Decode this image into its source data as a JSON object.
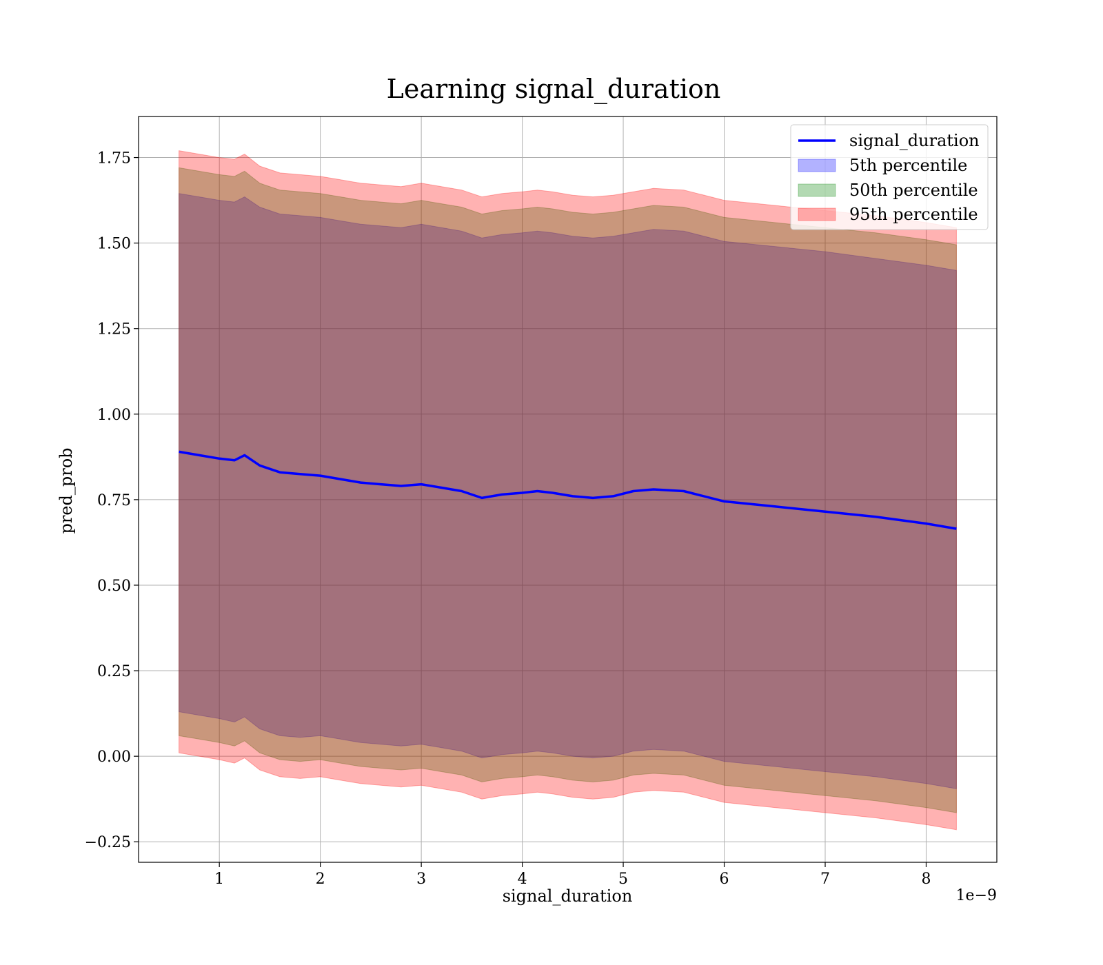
{
  "chart_data": {
    "type": "area",
    "title": "Learning signal_duration",
    "xlabel": "signal_duration",
    "ylabel": "pred_prob",
    "x_offset_label": "1e−9",
    "xlim": [
      0.2,
      8.7
    ],
    "ylim": [
      -0.31,
      1.87
    ],
    "grid": true,
    "legend_position": "upper right",
    "x_ticks": [
      1,
      2,
      3,
      4,
      5,
      6,
      7,
      8
    ],
    "x_tick_labels": [
      "1",
      "2",
      "3",
      "4",
      "5",
      "6",
      "7",
      "8"
    ],
    "y_ticks": [
      -0.25,
      0.0,
      0.25,
      0.5,
      0.75,
      1.0,
      1.25,
      1.5,
      1.75
    ],
    "y_tick_labels": [
      "−0.25",
      "0.00",
      "0.25",
      "0.50",
      "0.75",
      "1.00",
      "1.25",
      "1.50",
      "1.75"
    ],
    "x": [
      0.6,
      0.8,
      1.0,
      1.15,
      1.25,
      1.4,
      1.6,
      1.8,
      2.0,
      2.2,
      2.4,
      2.6,
      2.8,
      3.0,
      3.2,
      3.4,
      3.6,
      3.8,
      4.0,
      4.15,
      4.3,
      4.5,
      4.7,
      4.9,
      5.1,
      5.3,
      5.6,
      6.0,
      6.5,
      7.0,
      7.5,
      8.0,
      8.3
    ],
    "series": [
      {
        "name": "signal_duration",
        "kind": "line",
        "color": "#0000ff",
        "values": [
          0.89,
          0.88,
          0.87,
          0.865,
          0.88,
          0.85,
          0.83,
          0.825,
          0.82,
          0.81,
          0.8,
          0.795,
          0.79,
          0.795,
          0.785,
          0.775,
          0.755,
          0.765,
          0.77,
          0.775,
          0.77,
          0.76,
          0.755,
          0.76,
          0.775,
          0.78,
          0.775,
          0.745,
          0.73,
          0.715,
          0.7,
          0.68,
          0.665
        ]
      },
      {
        "name": "5th percentile",
        "kind": "band",
        "color": "#0000ff",
        "lower": [
          0.13,
          0.12,
          0.11,
          0.1,
          0.115,
          0.08,
          0.06,
          0.055,
          0.06,
          0.05,
          0.04,
          0.035,
          0.03,
          0.035,
          0.025,
          0.015,
          -0.005,
          0.005,
          0.01,
          0.015,
          0.01,
          0.0,
          -0.005,
          0.0,
          0.015,
          0.02,
          0.015,
          -0.015,
          -0.03,
          -0.045,
          -0.06,
          -0.08,
          -0.095
        ],
        "upper": [
          1.645,
          1.635,
          1.625,
          1.62,
          1.635,
          1.605,
          1.585,
          1.58,
          1.575,
          1.565,
          1.555,
          1.55,
          1.545,
          1.555,
          1.545,
          1.535,
          1.515,
          1.525,
          1.53,
          1.535,
          1.53,
          1.52,
          1.515,
          1.52,
          1.53,
          1.54,
          1.535,
          1.505,
          1.49,
          1.475,
          1.455,
          1.435,
          1.42
        ]
      },
      {
        "name": "50th percentile",
        "kind": "band",
        "color": "#008000",
        "lower": [
          0.06,
          0.05,
          0.04,
          0.03,
          0.045,
          0.01,
          -0.01,
          -0.015,
          -0.01,
          -0.02,
          -0.03,
          -0.035,
          -0.04,
          -0.035,
          -0.045,
          -0.055,
          -0.075,
          -0.065,
          -0.06,
          -0.055,
          -0.06,
          -0.07,
          -0.075,
          -0.07,
          -0.055,
          -0.05,
          -0.055,
          -0.085,
          -0.1,
          -0.115,
          -0.13,
          -0.15,
          -0.165
        ],
        "upper": [
          1.72,
          1.71,
          1.7,
          1.695,
          1.71,
          1.675,
          1.655,
          1.65,
          1.645,
          1.635,
          1.625,
          1.62,
          1.615,
          1.625,
          1.615,
          1.605,
          1.585,
          1.595,
          1.6,
          1.605,
          1.6,
          1.59,
          1.585,
          1.59,
          1.6,
          1.61,
          1.605,
          1.575,
          1.56,
          1.545,
          1.53,
          1.51,
          1.495
        ]
      },
      {
        "name": "95th percentile",
        "kind": "band",
        "color": "#ff0000",
        "lower": [
          0.01,
          0.0,
          -0.01,
          -0.02,
          -0.005,
          -0.04,
          -0.06,
          -0.065,
          -0.06,
          -0.07,
          -0.08,
          -0.085,
          -0.09,
          -0.085,
          -0.095,
          -0.105,
          -0.125,
          -0.115,
          -0.11,
          -0.105,
          -0.11,
          -0.12,
          -0.125,
          -0.12,
          -0.105,
          -0.1,
          -0.105,
          -0.135,
          -0.15,
          -0.165,
          -0.18,
          -0.2,
          -0.215
        ],
        "upper": [
          1.77,
          1.76,
          1.75,
          1.745,
          1.76,
          1.725,
          1.705,
          1.7,
          1.695,
          1.685,
          1.675,
          1.67,
          1.665,
          1.675,
          1.665,
          1.655,
          1.635,
          1.645,
          1.65,
          1.655,
          1.65,
          1.64,
          1.635,
          1.64,
          1.65,
          1.66,
          1.655,
          1.625,
          1.61,
          1.595,
          1.58,
          1.56,
          1.545
        ]
      }
    ],
    "legend": [
      "signal_duration",
      "5th percentile",
      "50th percentile",
      "95th percentile"
    ]
  }
}
